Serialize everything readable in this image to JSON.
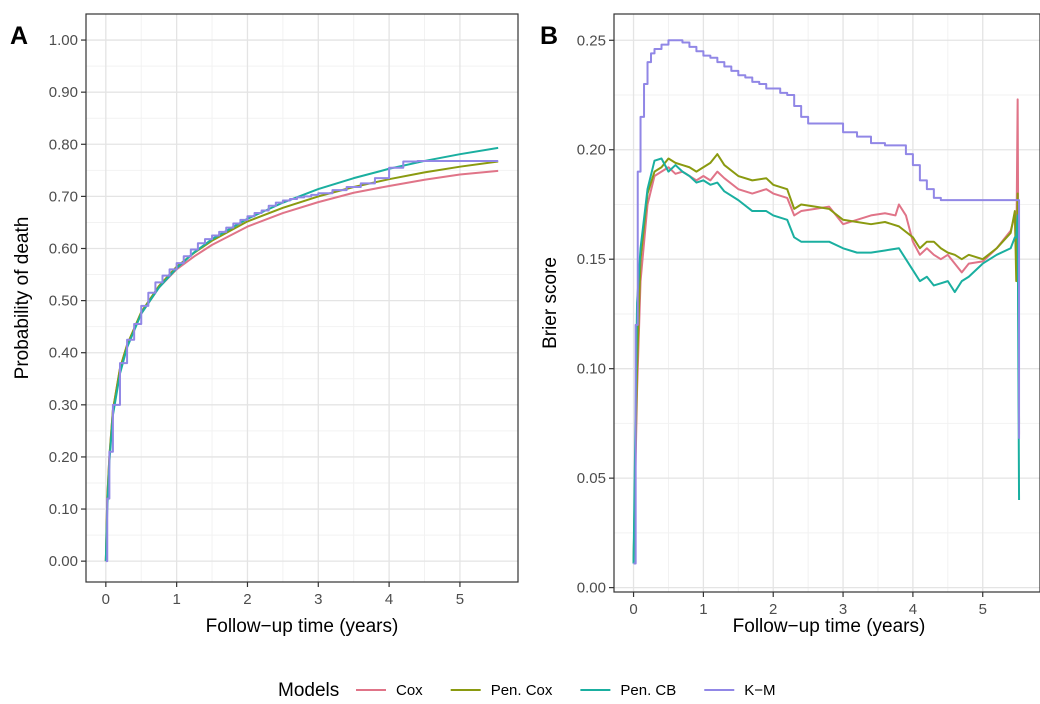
{
  "chart_data": [
    {
      "panel_label": "A",
      "type": "line",
      "xlabel": "Follow−up time (years)",
      "ylabel": "Probability of death",
      "xlim": [
        -0.28,
        5.82
      ],
      "ylim": [
        -0.04,
        1.05
      ],
      "x_ticks": [
        0,
        1,
        2,
        3,
        4,
        5
      ],
      "x_tick_labels": [
        "0",
        "1",
        "2",
        "3",
        "4",
        "5"
      ],
      "y_ticks": [
        0,
        0.1,
        0.2,
        0.3,
        0.4,
        0.5,
        0.6,
        0.7,
        0.8,
        0.9,
        1.0
      ],
      "y_tick_labels": [
        "0.00",
        "0.10",
        "0.20",
        "0.30",
        "0.40",
        "0.50",
        "0.60",
        "0.70",
        "0.80",
        "0.90",
        "1.00"
      ],
      "grid": true,
      "series": [
        {
          "name": "Cox",
          "color": "#E07488",
          "step": false,
          "x": [
            0,
            0.02,
            0.05,
            0.1,
            0.2,
            0.3,
            0.5,
            0.75,
            1.0,
            1.25,
            1.5,
            2.0,
            2.5,
            3.0,
            3.5,
            4.0,
            4.5,
            5.0,
            5.54
          ],
          "y": [
            0.0,
            0.12,
            0.2,
            0.29,
            0.37,
            0.415,
            0.475,
            0.525,
            0.56,
            0.585,
            0.607,
            0.642,
            0.668,
            0.689,
            0.707,
            0.72,
            0.732,
            0.742,
            0.749
          ]
        },
        {
          "name": "Pen. Cox",
          "color": "#8A9A10",
          "step": false,
          "x": [
            0,
            0.02,
            0.05,
            0.1,
            0.2,
            0.3,
            0.5,
            0.75,
            1.0,
            1.25,
            1.5,
            2.0,
            2.5,
            3.0,
            3.5,
            4.0,
            4.5,
            5.0,
            5.54
          ],
          "y": [
            0.0,
            0.12,
            0.2,
            0.29,
            0.37,
            0.415,
            0.478,
            0.528,
            0.565,
            0.592,
            0.615,
            0.652,
            0.678,
            0.7,
            0.718,
            0.733,
            0.746,
            0.757,
            0.767
          ]
        },
        {
          "name": "Pen. CB",
          "color": "#1AAFA0",
          "step": false,
          "x": [
            0,
            0.02,
            0.05,
            0.1,
            0.2,
            0.3,
            0.5,
            0.75,
            1.0,
            1.25,
            1.5,
            2.0,
            2.5,
            3.0,
            3.5,
            4.0,
            4.5,
            5.0,
            5.54
          ],
          "y": [
            0.0,
            0.1,
            0.19,
            0.28,
            0.36,
            0.41,
            0.475,
            0.525,
            0.562,
            0.593,
            0.618,
            0.657,
            0.688,
            0.714,
            0.735,
            0.753,
            0.768,
            0.781,
            0.793
          ]
        },
        {
          "name": "K−M",
          "color": "#9187E6",
          "step": true,
          "x": [
            0,
            0.02,
            0.05,
            0.1,
            0.2,
            0.3,
            0.4,
            0.5,
            0.6,
            0.7,
            0.8,
            0.9,
            1.0,
            1.1,
            1.2,
            1.3,
            1.4,
            1.5,
            1.6,
            1.7,
            1.8,
            1.9,
            2.0,
            2.1,
            2.2,
            2.3,
            2.4,
            2.5,
            2.6,
            2.7,
            2.8,
            2.9,
            3.0,
            3.2,
            3.4,
            3.6,
            3.8,
            4.0,
            4.2,
            4.4,
            4.6,
            4.8,
            5.0,
            5.54
          ],
          "y": [
            0.0,
            0.12,
            0.21,
            0.3,
            0.38,
            0.425,
            0.455,
            0.49,
            0.515,
            0.535,
            0.548,
            0.56,
            0.572,
            0.585,
            0.598,
            0.61,
            0.618,
            0.625,
            0.632,
            0.64,
            0.648,
            0.655,
            0.662,
            0.668,
            0.673,
            0.682,
            0.688,
            0.692,
            0.695,
            0.698,
            0.7,
            0.703,
            0.706,
            0.712,
            0.718,
            0.725,
            0.735,
            0.755,
            0.767,
            0.768,
            0.768,
            0.768,
            0.768,
            0.768
          ]
        }
      ]
    },
    {
      "panel_label": "B",
      "type": "line",
      "xlabel": "Follow−up time (years)",
      "ylabel": "Brier score",
      "xlim": [
        -0.28,
        5.82
      ],
      "ylim": [
        -0.002,
        0.262
      ],
      "x_ticks": [
        0,
        1,
        2,
        3,
        4,
        5
      ],
      "x_tick_labels": [
        "0",
        "1",
        "2",
        "3",
        "4",
        "5"
      ],
      "y_ticks": [
        0,
        0.05,
        0.1,
        0.15,
        0.2,
        0.25
      ],
      "y_tick_labels": [
        "0.00",
        "0.05",
        "0.10",
        "0.15",
        "0.20",
        "0.25"
      ],
      "grid": true,
      "series": [
        {
          "name": "Cox",
          "color": "#E07488",
          "step": false,
          "x": [
            0,
            0.05,
            0.1,
            0.2,
            0.3,
            0.4,
            0.5,
            0.6,
            0.7,
            0.8,
            0.9,
            1.0,
            1.1,
            1.2,
            1.3,
            1.5,
            1.7,
            1.9,
            2.0,
            2.2,
            2.3,
            2.4,
            2.6,
            2.8,
            3.0,
            3.2,
            3.4,
            3.6,
            3.75,
            3.8,
            3.9,
            4.0,
            4.1,
            4.2,
            4.3,
            4.4,
            4.5,
            4.6,
            4.7,
            4.8,
            5.0,
            5.2,
            5.4,
            5.46,
            5.48,
            5.5,
            5.52
          ],
          "y": [
            0.011,
            0.09,
            0.14,
            0.175,
            0.188,
            0.19,
            0.192,
            0.189,
            0.19,
            0.188,
            0.186,
            0.188,
            0.186,
            0.19,
            0.187,
            0.182,
            0.18,
            0.182,
            0.18,
            0.178,
            0.17,
            0.172,
            0.173,
            0.174,
            0.166,
            0.168,
            0.17,
            0.171,
            0.17,
            0.175,
            0.17,
            0.158,
            0.152,
            0.155,
            0.152,
            0.15,
            0.152,
            0.148,
            0.144,
            0.148,
            0.149,
            0.155,
            0.163,
            0.17,
            0.15,
            0.223,
            0.07
          ]
        },
        {
          "name": "Pen. Cox",
          "color": "#8A9A10",
          "step": false,
          "x": [
            0,
            0.05,
            0.1,
            0.2,
            0.3,
            0.4,
            0.5,
            0.6,
            0.7,
            0.8,
            0.9,
            1.0,
            1.1,
            1.2,
            1.3,
            1.5,
            1.7,
            1.9,
            2.0,
            2.2,
            2.3,
            2.4,
            2.6,
            2.8,
            3.0,
            3.2,
            3.4,
            3.6,
            3.8,
            4.0,
            4.1,
            4.2,
            4.3,
            4.4,
            4.5,
            4.6,
            4.7,
            4.8,
            5.0,
            5.2,
            5.4,
            5.46,
            5.48,
            5.5,
            5.52
          ],
          "y": [
            0.011,
            0.1,
            0.15,
            0.18,
            0.19,
            0.192,
            0.196,
            0.194,
            0.193,
            0.192,
            0.19,
            0.192,
            0.194,
            0.198,
            0.193,
            0.188,
            0.186,
            0.187,
            0.184,
            0.182,
            0.173,
            0.175,
            0.174,
            0.173,
            0.168,
            0.167,
            0.166,
            0.167,
            0.165,
            0.16,
            0.155,
            0.158,
            0.158,
            0.155,
            0.153,
            0.152,
            0.15,
            0.152,
            0.15,
            0.155,
            0.162,
            0.172,
            0.14,
            0.18,
            0.075
          ]
        },
        {
          "name": "Pen. CB",
          "color": "#1AAFA0",
          "step": false,
          "x": [
            0,
            0.05,
            0.1,
            0.2,
            0.3,
            0.4,
            0.5,
            0.6,
            0.7,
            0.8,
            0.9,
            1.0,
            1.1,
            1.2,
            1.3,
            1.5,
            1.7,
            1.9,
            2.0,
            2.2,
            2.3,
            2.4,
            2.6,
            2.8,
            3.0,
            3.2,
            3.4,
            3.6,
            3.8,
            4.0,
            4.1,
            4.2,
            4.3,
            4.4,
            4.5,
            4.6,
            4.7,
            4.8,
            5.0,
            5.2,
            5.4,
            5.46,
            5.48,
            5.5,
            5.52
          ],
          "y": [
            0.011,
            0.13,
            0.155,
            0.182,
            0.195,
            0.196,
            0.19,
            0.193,
            0.19,
            0.188,
            0.185,
            0.186,
            0.184,
            0.185,
            0.181,
            0.177,
            0.172,
            0.172,
            0.17,
            0.168,
            0.16,
            0.158,
            0.158,
            0.158,
            0.155,
            0.153,
            0.153,
            0.154,
            0.155,
            0.145,
            0.14,
            0.142,
            0.138,
            0.139,
            0.14,
            0.135,
            0.14,
            0.142,
            0.148,
            0.152,
            0.155,
            0.16,
            0.16,
            0.17,
            0.04
          ]
        },
        {
          "name": "K−M",
          "color": "#9187E6",
          "step": true,
          "x": [
            0,
            0.03,
            0.06,
            0.1,
            0.15,
            0.2,
            0.25,
            0.3,
            0.4,
            0.5,
            0.6,
            0.7,
            0.8,
            0.9,
            1.0,
            1.1,
            1.2,
            1.3,
            1.4,
            1.5,
            1.6,
            1.7,
            1.8,
            1.9,
            2.0,
            2.1,
            2.2,
            2.3,
            2.4,
            2.5,
            2.6,
            2.8,
            3.0,
            3.2,
            3.4,
            3.6,
            3.8,
            3.9,
            4.0,
            4.1,
            4.2,
            4.3,
            4.4,
            5.0,
            5.46,
            5.5,
            5.52
          ],
          "y": [
            0.011,
            0.12,
            0.19,
            0.215,
            0.23,
            0.24,
            0.244,
            0.246,
            0.248,
            0.25,
            0.25,
            0.249,
            0.247,
            0.245,
            0.243,
            0.242,
            0.24,
            0.238,
            0.236,
            0.234,
            0.233,
            0.231,
            0.23,
            0.228,
            0.228,
            0.226,
            0.225,
            0.22,
            0.215,
            0.212,
            0.212,
            0.212,
            0.208,
            0.206,
            0.203,
            0.202,
            0.202,
            0.198,
            0.193,
            0.186,
            0.182,
            0.178,
            0.177,
            0.177,
            0.177,
            0.177,
            0.068
          ]
        }
      ]
    }
  ],
  "legend": {
    "title": "Models",
    "position": "bottom",
    "items": [
      {
        "label": "Cox",
        "color": "#E07488"
      },
      {
        "label": "Pen. Cox",
        "color": "#8A9A10"
      },
      {
        "label": "Pen. CB",
        "color": "#1AAFA0"
      },
      {
        "label": "K−M",
        "color": "#9187E6"
      }
    ]
  }
}
